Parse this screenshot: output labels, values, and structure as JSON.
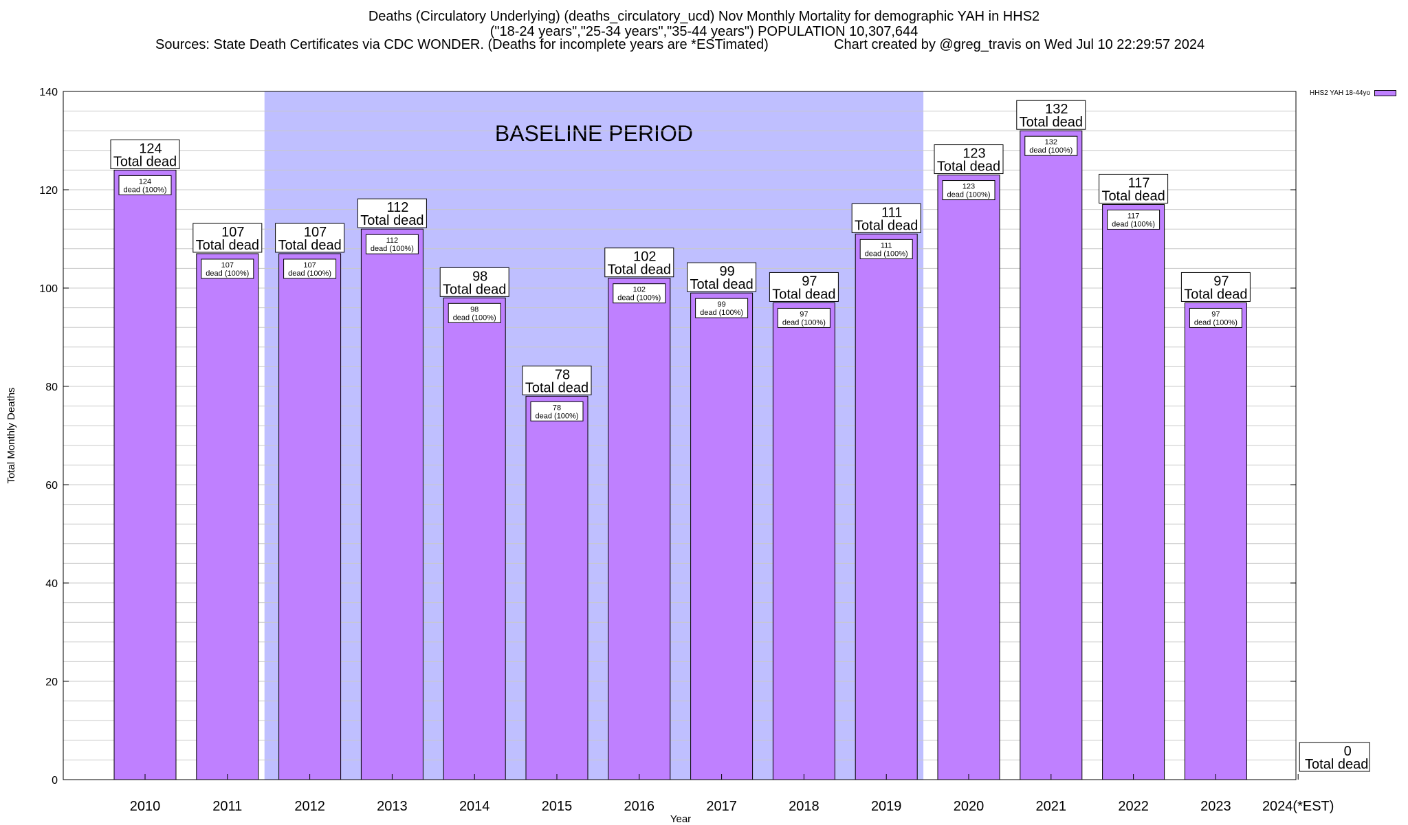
{
  "titles": {
    "line1": "Deaths (Circulatory Underlying) (deaths_circulatory_ucd) Nov Monthly Mortality for demographic YAH in HHS2",
    "line2": "(\"18-24 years\",\"25-34 years\",\"35-44 years\") POPULATION 10,307,644",
    "sources": "Sources: State Death Certificates via CDC WONDER. (Deaths for incomplete years are *ESTimated)",
    "created": "Chart created by @greg_travis on Wed Jul 10 22:29:57 2024"
  },
  "colors": {
    "bar": "#bf80ff",
    "baseline_band": "#bfbfff",
    "grid": "#c8c8c8"
  },
  "chart_data": {
    "type": "bar",
    "xlabel": "Year",
    "ylabel": "Total Monthly Deaths",
    "ylim": [
      0,
      140
    ],
    "y_ticks": [
      0,
      20,
      40,
      60,
      80,
      100,
      120,
      140
    ],
    "categories": [
      "2010",
      "2011",
      "2012",
      "2013",
      "2014",
      "2015",
      "2016",
      "2017",
      "2018",
      "2019",
      "2020",
      "2021",
      "2022",
      "2023",
      "2024(*EST)"
    ],
    "series": [
      {
        "name": "HHS2 YAH 18-44yo",
        "values": [
          124,
          107,
          107,
          112,
          98,
          78,
          102,
          99,
          97,
          111,
          123,
          132,
          117,
          97,
          0
        ]
      }
    ],
    "top_label_suffix": "Total dead",
    "inner_label_suffix": "dead (100%)",
    "baseline": {
      "label": "BASELINE PERIOD",
      "from": "2012",
      "to": "2019"
    },
    "grid": true,
    "legend_position": "top-right"
  }
}
